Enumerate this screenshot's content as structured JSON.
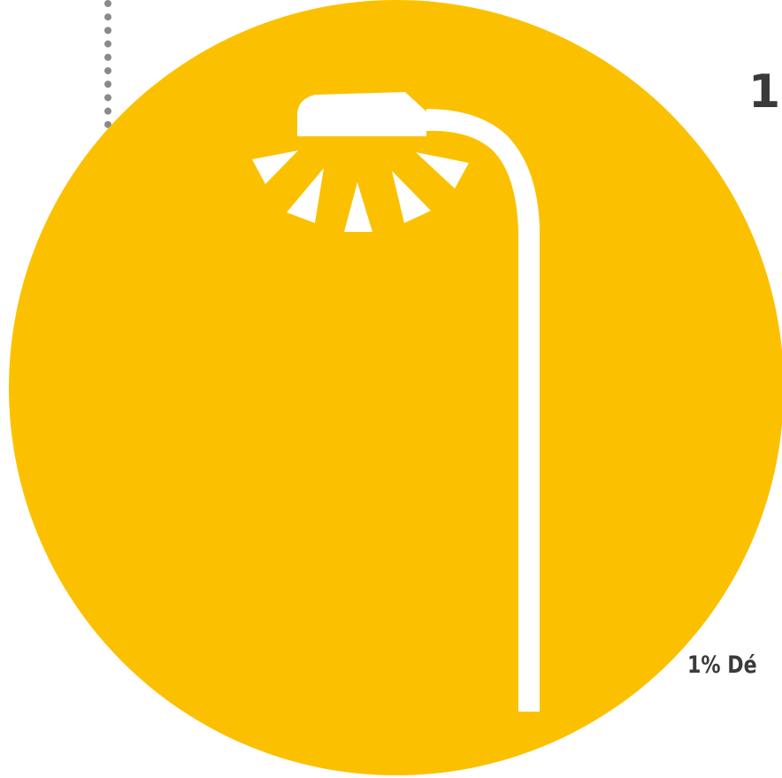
{
  "colors": {
    "circle": "#FBC100",
    "lamp": "#FFFFFF",
    "dotted_line": "#8A8A8A",
    "text": "#3A3A3A",
    "background": "#FFFFFF"
  },
  "icons": {
    "main": "street-lamp-icon"
  },
  "stat": {
    "number_fragment": "1",
    "caption_fragment": "1% Dé"
  }
}
